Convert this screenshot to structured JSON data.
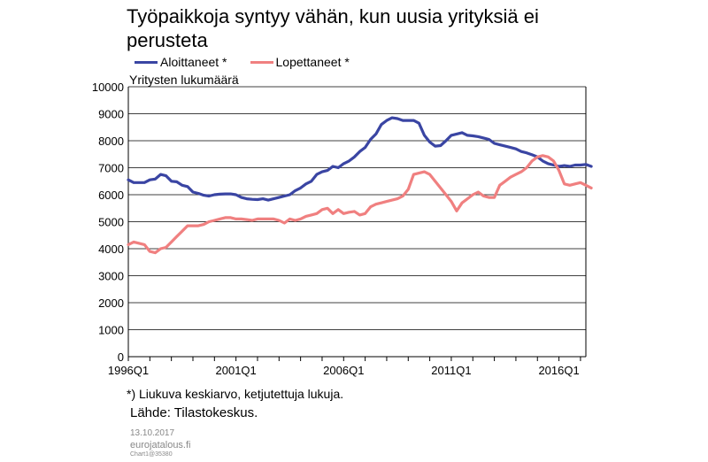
{
  "title": "Työpaikkoja syntyy vähän, kun uusia yrityksiä ei perusteta",
  "legend": [
    {
      "label": "Aloittaneet *",
      "color": "#3a45a3"
    },
    {
      "label": "Lopettaneet *",
      "color": "#f08080"
    }
  ],
  "footnote": "*) Liukuva keskiarvo, ketjutettuja lukuja.",
  "source": "Lähde: Tilastokeskus.",
  "footer": {
    "date": "13.10.2017",
    "site": "eurojatalous.fi",
    "chart_id": "Chart1@35380"
  },
  "chart_data": {
    "type": "line",
    "ylabel": "Yritysten lukumäärä",
    "xlabel": "",
    "ylim": [
      0,
      10000
    ],
    "yticks": [
      "0",
      "1000",
      "2000",
      "3000",
      "4000",
      "5000",
      "6000",
      "7000",
      "8000",
      "9000",
      "10000"
    ],
    "xticks": [
      "1996Q1",
      "2001Q1",
      "2006Q1",
      "2011Q1",
      "2016Q1"
    ],
    "x_start": "1996Q1",
    "x_end": "2017Q2",
    "grid": true,
    "series": [
      {
        "name": "Aloittaneet *",
        "color": "#3a45a3",
        "points": [
          [
            "1996Q1",
            6550
          ],
          [
            "1996Q2",
            6450
          ],
          [
            "1996Q3",
            6450
          ],
          [
            "1996Q4",
            6450
          ],
          [
            "1997Q1",
            6550
          ],
          [
            "1997Q2",
            6580
          ],
          [
            "1997Q3",
            6750
          ],
          [
            "1997Q4",
            6700
          ],
          [
            "1998Q1",
            6500
          ],
          [
            "1998Q2",
            6480
          ],
          [
            "1998Q3",
            6350
          ],
          [
            "1998Q4",
            6300
          ],
          [
            "1999Q1",
            6100
          ],
          [
            "1999Q2",
            6050
          ],
          [
            "1999Q3",
            5980
          ],
          [
            "1999Q4",
            5950
          ],
          [
            "2000Q1",
            6000
          ],
          [
            "2000Q2",
            6020
          ],
          [
            "2000Q3",
            6030
          ],
          [
            "2000Q4",
            6030
          ],
          [
            "2001Q1",
            6000
          ],
          [
            "2001Q2",
            5900
          ],
          [
            "2001Q3",
            5850
          ],
          [
            "2001Q4",
            5830
          ],
          [
            "2002Q1",
            5820
          ],
          [
            "2002Q2",
            5850
          ],
          [
            "2002Q3",
            5800
          ],
          [
            "2002Q4",
            5850
          ],
          [
            "2003Q1",
            5900
          ],
          [
            "2003Q2",
            5950
          ],
          [
            "2003Q3",
            6000
          ],
          [
            "2003Q4",
            6150
          ],
          [
            "2004Q1",
            6250
          ],
          [
            "2004Q2",
            6400
          ],
          [
            "2004Q3",
            6500
          ],
          [
            "2004Q4",
            6750
          ],
          [
            "2005Q1",
            6850
          ],
          [
            "2005Q2",
            6900
          ],
          [
            "2005Q3",
            7050
          ],
          [
            "2005Q4",
            7000
          ],
          [
            "2006Q1",
            7150
          ],
          [
            "2006Q2",
            7250
          ],
          [
            "2006Q3",
            7400
          ],
          [
            "2006Q4",
            7600
          ],
          [
            "2007Q1",
            7750
          ],
          [
            "2007Q2",
            8050
          ],
          [
            "2007Q3",
            8250
          ],
          [
            "2007Q4",
            8600
          ],
          [
            "2008Q1",
            8750
          ],
          [
            "2008Q2",
            8850
          ],
          [
            "2008Q3",
            8820
          ],
          [
            "2008Q4",
            8750
          ],
          [
            "2009Q1",
            8750
          ],
          [
            "2009Q2",
            8750
          ],
          [
            "2009Q3",
            8650
          ],
          [
            "2009Q4",
            8200
          ],
          [
            "2010Q1",
            7950
          ],
          [
            "2010Q2",
            7800
          ],
          [
            "2010Q3",
            7820
          ],
          [
            "2010Q4",
            8000
          ],
          [
            "2011Q1",
            8200
          ],
          [
            "2011Q2",
            8250
          ],
          [
            "2011Q3",
            8300
          ],
          [
            "2011Q4",
            8200
          ],
          [
            "2012Q1",
            8180
          ],
          [
            "2012Q2",
            8150
          ],
          [
            "2012Q3",
            8100
          ],
          [
            "2012Q4",
            8050
          ],
          [
            "2013Q1",
            7900
          ],
          [
            "2013Q2",
            7850
          ],
          [
            "2013Q3",
            7800
          ],
          [
            "2013Q4",
            7750
          ],
          [
            "2014Q1",
            7700
          ],
          [
            "2014Q2",
            7600
          ],
          [
            "2014Q3",
            7550
          ],
          [
            "2014Q4",
            7480
          ],
          [
            "2015Q1",
            7400
          ],
          [
            "2015Q2",
            7250
          ],
          [
            "2015Q3",
            7150
          ],
          [
            "2015Q4",
            7100
          ],
          [
            "2016Q1",
            7050
          ],
          [
            "2016Q2",
            7080
          ],
          [
            "2016Q3",
            7050
          ],
          [
            "2016Q4",
            7100
          ],
          [
            "2017Q1",
            7100
          ],
          [
            "2017Q2",
            7120
          ],
          [
            "2017Q3",
            7050
          ]
        ]
      },
      {
        "name": "Lopettaneet *",
        "color": "#f08080",
        "points": [
          [
            "1996Q1",
            4150
          ],
          [
            "1996Q2",
            4250
          ],
          [
            "1996Q3",
            4200
          ],
          [
            "1996Q4",
            4150
          ],
          [
            "1997Q1",
            3900
          ],
          [
            "1997Q2",
            3850
          ],
          [
            "1997Q3",
            4000
          ],
          [
            "1997Q4",
            4050
          ],
          [
            "1998Q1",
            4250
          ],
          [
            "1998Q2",
            4450
          ],
          [
            "1998Q3",
            4650
          ],
          [
            "1998Q4",
            4850
          ],
          [
            "1999Q1",
            4850
          ],
          [
            "1999Q2",
            4850
          ],
          [
            "1999Q3",
            4900
          ],
          [
            "1999Q4",
            5000
          ],
          [
            "2000Q1",
            5050
          ],
          [
            "2000Q2",
            5100
          ],
          [
            "2000Q3",
            5150
          ],
          [
            "2000Q4",
            5150
          ],
          [
            "2001Q1",
            5100
          ],
          [
            "2001Q2",
            5100
          ],
          [
            "2001Q3",
            5080
          ],
          [
            "2001Q4",
            5050
          ],
          [
            "2002Q1",
            5100
          ],
          [
            "2002Q2",
            5100
          ],
          [
            "2002Q3",
            5100
          ],
          [
            "2002Q4",
            5100
          ],
          [
            "2003Q1",
            5050
          ],
          [
            "2003Q2",
            4950
          ],
          [
            "2003Q3",
            5100
          ],
          [
            "2003Q4",
            5050
          ],
          [
            "2004Q1",
            5100
          ],
          [
            "2004Q2",
            5200
          ],
          [
            "2004Q3",
            5250
          ],
          [
            "2004Q4",
            5300
          ],
          [
            "2005Q1",
            5450
          ],
          [
            "2005Q2",
            5500
          ],
          [
            "2005Q3",
            5300
          ],
          [
            "2005Q4",
            5450
          ],
          [
            "2006Q1",
            5300
          ],
          [
            "2006Q2",
            5350
          ],
          [
            "2006Q3",
            5380
          ],
          [
            "2006Q4",
            5250
          ],
          [
            "2007Q1",
            5300
          ],
          [
            "2007Q2",
            5550
          ],
          [
            "2007Q3",
            5650
          ],
          [
            "2007Q4",
            5700
          ],
          [
            "2008Q1",
            5750
          ],
          [
            "2008Q2",
            5800
          ],
          [
            "2008Q3",
            5850
          ],
          [
            "2008Q4",
            5950
          ],
          [
            "2009Q1",
            6200
          ],
          [
            "2009Q2",
            6750
          ],
          [
            "2009Q3",
            6800
          ],
          [
            "2009Q4",
            6850
          ],
          [
            "2010Q1",
            6750
          ],
          [
            "2010Q2",
            6500
          ],
          [
            "2010Q3",
            6250
          ],
          [
            "2010Q4",
            6000
          ],
          [
            "2011Q1",
            5750
          ],
          [
            "2011Q2",
            5400
          ],
          [
            "2011Q3",
            5700
          ],
          [
            "2011Q4",
            5850
          ],
          [
            "2012Q1",
            6000
          ],
          [
            "2012Q2",
            6100
          ],
          [
            "2012Q3",
            5950
          ],
          [
            "2012Q4",
            5900
          ],
          [
            "2013Q1",
            5900
          ],
          [
            "2013Q2",
            6350
          ],
          [
            "2013Q3",
            6500
          ],
          [
            "2013Q4",
            6650
          ],
          [
            "2014Q1",
            6750
          ],
          [
            "2014Q2",
            6850
          ],
          [
            "2014Q3",
            7000
          ],
          [
            "2014Q4",
            7250
          ],
          [
            "2015Q1",
            7400
          ],
          [
            "2015Q2",
            7450
          ],
          [
            "2015Q3",
            7400
          ],
          [
            "2015Q4",
            7250
          ],
          [
            "2016Q1",
            6900
          ],
          [
            "2016Q2",
            6400
          ],
          [
            "2016Q3",
            6350
          ],
          [
            "2016Q4",
            6400
          ],
          [
            "2017Q1",
            6450
          ],
          [
            "2017Q2",
            6350
          ],
          [
            "2017Q3",
            6250
          ]
        ]
      }
    ]
  }
}
